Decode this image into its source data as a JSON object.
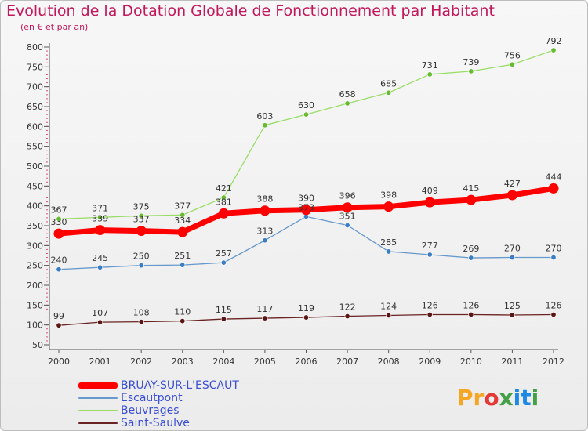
{
  "title": "Evolution de la Dotation Globale de Fonctionnement par Habitant",
  "subtitle": "(en € et par an)",
  "logo": {
    "text": "Proxiti",
    "letters": [
      {
        "ch": "P",
        "color": "#f5a623"
      },
      {
        "ch": "r",
        "color": "#f5a623"
      },
      {
        "ch": "o",
        "color": "#e53935"
      },
      {
        "ch": "x",
        "color": "#43a047"
      },
      {
        "ch": "i",
        "color": "#1e88e5"
      },
      {
        "ch": "t",
        "color": "#1e88e5"
      },
      {
        "ch": "i",
        "color": "#43a047"
      }
    ]
  },
  "chart_data": {
    "type": "line",
    "title": "Evolution de la Dotation Globale de Fonctionnement par Habitant",
    "ylabel": "(en € et par an)",
    "xlabel": "",
    "x": [
      "2000",
      "2001",
      "2002",
      "2003",
      "2004",
      "2005",
      "2006",
      "2007",
      "2008",
      "2009",
      "2010",
      "2011",
      "2012"
    ],
    "ylim": [
      50,
      800
    ],
    "yticks": [
      "50",
      "100",
      "150",
      "200",
      "250",
      "300",
      "350",
      "400",
      "450",
      "500",
      "550",
      "600",
      "650",
      "700",
      "750",
      "800"
    ],
    "grid": false,
    "legend_position": "bottom-left",
    "series": [
      {
        "name": "BRUAY-SUR-L'ESCAUT",
        "color": "#ff0000",
        "values": [
          330,
          339,
          337,
          334,
          381,
          388,
          390,
          396,
          398,
          409,
          415,
          427,
          444
        ],
        "labels": [
          "330",
          "339",
          "337",
          "334",
          "381",
          "388",
          "390",
          "396",
          "398",
          "409",
          "415",
          "427",
          "444"
        ]
      },
      {
        "name": "Escautpont",
        "color": "#6699cc",
        "values": [
          240,
          245,
          250,
          251,
          257,
          313,
          373,
          351,
          285,
          277,
          269,
          270,
          270
        ],
        "labels": [
          "240",
          "245",
          "250",
          "251",
          "257",
          "313",
          "373",
          "351",
          "285",
          "277",
          "269",
          "270",
          "270"
        ]
      },
      {
        "name": "Beuvrages",
        "color": "#99dd66",
        "values": [
          367,
          371,
          375,
          377,
          421,
          603,
          630,
          658,
          685,
          731,
          739,
          756,
          792
        ],
        "labels": [
          "367",
          "371",
          "375",
          "377",
          "421",
          "603",
          "630",
          "658",
          "685",
          "731",
          "739",
          "756",
          "792"
        ]
      },
      {
        "name": "Saint-Saulve",
        "color": "#6b2222",
        "values": [
          99,
          107,
          108,
          110,
          115,
          117,
          119,
          122,
          124,
          126,
          126,
          125,
          126
        ],
        "labels": [
          "99",
          "107",
          "108",
          "110",
          "115",
          "117",
          "119",
          "122",
          "124",
          "126",
          "126",
          "125",
          "126"
        ]
      }
    ]
  }
}
